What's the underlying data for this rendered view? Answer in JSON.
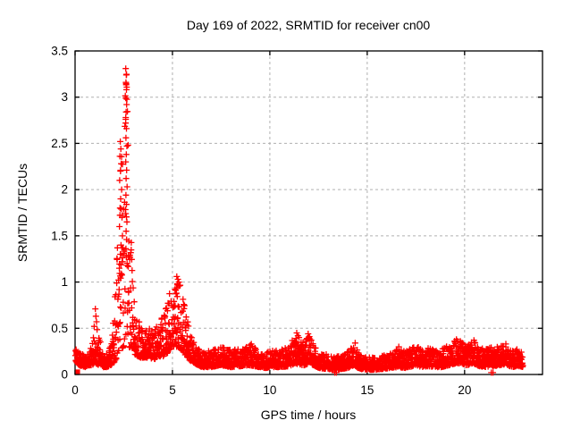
{
  "window": {
    "background_color": "#ffffff"
  },
  "chart_data": {
    "type": "scatter",
    "title": "Day 169 of 2022, SRMTID for receiver cn00",
    "xlabel": "GPS time / hours",
    "ylabel": "SRMTID / TECUs",
    "series_name": "SRMTID",
    "xlim": [
      0,
      24
    ],
    "ylim": [
      0,
      3.5
    ],
    "xticks": [
      0,
      5,
      10,
      15,
      20
    ],
    "yticks": [
      0,
      0.5,
      1,
      1.5,
      2,
      2.5,
      3,
      3.5
    ],
    "grid": true,
    "grid_color": "#b0b0b0",
    "frame_color": "#000000",
    "marker": "plus",
    "marker_color": "#ff0000",
    "legend_position": "none",
    "sampling": {
      "t_start": 0.02,
      "t_end": 23.0,
      "samples_per_hour": 120,
      "seed": 42,
      "exponent": 1.8
    },
    "envelope_lo_hi": [
      [
        0.0,
        0.15,
        0.3
      ],
      [
        0.2,
        0.1,
        0.25
      ],
      [
        0.5,
        0.08,
        0.2
      ],
      [
        0.85,
        0.1,
        0.3
      ],
      [
        1.05,
        0.12,
        0.58
      ],
      [
        1.25,
        0.1,
        0.4
      ],
      [
        1.45,
        0.08,
        0.22
      ],
      [
        1.7,
        0.08,
        0.22
      ],
      [
        1.9,
        0.1,
        0.45
      ],
      [
        2.05,
        0.15,
        1.0
      ],
      [
        2.2,
        0.2,
        1.45
      ],
      [
        2.35,
        0.25,
        2.3
      ],
      [
        2.5,
        0.3,
        2.9
      ],
      [
        2.65,
        0.35,
        3.32
      ],
      [
        2.78,
        0.3,
        2.6
      ],
      [
        2.9,
        0.25,
        1.4
      ],
      [
        3.05,
        0.22,
        0.9
      ],
      [
        3.2,
        0.2,
        0.65
      ],
      [
        3.4,
        0.18,
        0.5
      ],
      [
        3.7,
        0.18,
        0.52
      ],
      [
        4.0,
        0.16,
        0.48
      ],
      [
        4.3,
        0.18,
        0.55
      ],
      [
        4.6,
        0.2,
        0.7
      ],
      [
        4.85,
        0.25,
        0.9
      ],
      [
        5.1,
        0.3,
        1.0
      ],
      [
        5.3,
        0.3,
        1.07
      ],
      [
        5.5,
        0.25,
        0.95
      ],
      [
        5.7,
        0.2,
        0.65
      ],
      [
        5.9,
        0.15,
        0.45
      ],
      [
        6.15,
        0.12,
        0.32
      ],
      [
        6.5,
        0.08,
        0.25
      ],
      [
        7.0,
        0.08,
        0.26
      ],
      [
        7.5,
        0.1,
        0.3
      ],
      [
        8.0,
        0.08,
        0.27
      ],
      [
        8.5,
        0.09,
        0.28
      ],
      [
        9.0,
        0.1,
        0.33
      ],
      [
        9.4,
        0.08,
        0.26
      ],
      [
        9.8,
        0.07,
        0.24
      ],
      [
        10.2,
        0.08,
        0.26
      ],
      [
        10.6,
        0.08,
        0.27
      ],
      [
        11.0,
        0.09,
        0.3
      ],
      [
        11.3,
        0.12,
        0.44
      ],
      [
        11.55,
        0.1,
        0.38
      ],
      [
        11.8,
        0.1,
        0.35
      ],
      [
        12.0,
        0.12,
        0.44
      ],
      [
        12.25,
        0.1,
        0.32
      ],
      [
        12.5,
        0.07,
        0.24
      ],
      [
        12.9,
        0.06,
        0.22
      ],
      [
        13.3,
        0.05,
        0.2
      ],
      [
        13.7,
        0.06,
        0.22
      ],
      [
        14.0,
        0.07,
        0.26
      ],
      [
        14.35,
        0.1,
        0.34
      ],
      [
        14.6,
        0.06,
        0.22
      ],
      [
        15.0,
        0.05,
        0.19
      ],
      [
        15.4,
        0.05,
        0.18
      ],
      [
        15.8,
        0.06,
        0.21
      ],
      [
        16.2,
        0.07,
        0.23
      ],
      [
        16.6,
        0.08,
        0.28
      ],
      [
        17.0,
        0.07,
        0.25
      ],
      [
        17.5,
        0.1,
        0.32
      ],
      [
        17.8,
        0.08,
        0.27
      ],
      [
        18.15,
        0.09,
        0.3
      ],
      [
        18.45,
        0.08,
        0.27
      ],
      [
        18.8,
        0.08,
        0.28
      ],
      [
        19.2,
        0.1,
        0.32
      ],
      [
        19.55,
        0.12,
        0.38
      ],
      [
        19.8,
        0.12,
        0.36
      ],
      [
        20.1,
        0.1,
        0.3
      ],
      [
        20.45,
        0.12,
        0.37
      ],
      [
        20.75,
        0.09,
        0.3
      ],
      [
        21.1,
        0.08,
        0.28
      ],
      [
        21.45,
        0.09,
        0.3
      ],
      [
        21.8,
        0.1,
        0.3
      ],
      [
        22.1,
        0.11,
        0.34
      ],
      [
        22.45,
        0.08,
        0.28
      ],
      [
        22.75,
        0.09,
        0.28
      ],
      [
        23.0,
        0.08,
        0.25
      ]
    ],
    "feature_points": [
      [
        2.6,
        3.31
      ],
      [
        2.63,
        3.24
      ],
      [
        2.61,
        3.16
      ],
      [
        2.64,
        3.08
      ],
      [
        2.6,
        2.99
      ],
      [
        2.65,
        2.92
      ],
      [
        2.62,
        2.84
      ],
      [
        2.6,
        2.76
      ],
      [
        2.64,
        2.66
      ],
      [
        2.61,
        2.56
      ],
      [
        2.66,
        2.47
      ],
      [
        2.63,
        2.38
      ],
      [
        2.6,
        2.3
      ],
      [
        2.65,
        2.21
      ],
      [
        2.62,
        2.12
      ],
      [
        2.67,
        2.03
      ],
      [
        2.61,
        1.94
      ],
      [
        2.64,
        1.84
      ],
      [
        2.6,
        1.74
      ],
      [
        2.66,
        1.65
      ],
      [
        2.62,
        1.55
      ],
      [
        2.65,
        1.46
      ],
      [
        2.61,
        1.36
      ],
      [
        2.63,
        1.27
      ],
      [
        2.67,
        1.18
      ],
      [
        2.32,
        2.52
      ],
      [
        2.35,
        2.44
      ],
      [
        2.3,
        2.36
      ],
      [
        2.37,
        2.28
      ],
      [
        2.33,
        2.2
      ],
      [
        2.29,
        2.1
      ],
      [
        2.39,
        2.0
      ],
      [
        2.34,
        1.9
      ],
      [
        2.31,
        1.8
      ],
      [
        2.41,
        1.7
      ],
      [
        2.28,
        1.6
      ],
      [
        2.43,
        1.5
      ],
      [
        2.36,
        1.4
      ],
      [
        2.32,
        1.3
      ],
      [
        2.44,
        1.22
      ],
      [
        2.27,
        1.15
      ],
      [
        5.22,
        1.06
      ],
      [
        5.28,
        1.03
      ],
      [
        5.33,
        1.0
      ],
      [
        5.25,
        0.98
      ],
      [
        5.36,
        0.96
      ],
      [
        1.04,
        0.71
      ],
      [
        1.07,
        0.63
      ],
      [
        1.1,
        0.57
      ],
      [
        0.98,
        0.52
      ],
      [
        0.05,
        0.27
      ],
      [
        0.08,
        0.24
      ],
      [
        9.05,
        0.33
      ],
      [
        11.38,
        0.45
      ],
      [
        11.44,
        0.42
      ],
      [
        11.5,
        0.4
      ],
      [
        11.97,
        0.44
      ],
      [
        12.03,
        0.41
      ],
      [
        14.38,
        0.34
      ],
      [
        16.62,
        0.3
      ],
      [
        19.58,
        0.38
      ],
      [
        19.64,
        0.36
      ],
      [
        20.48,
        0.37
      ],
      [
        20.54,
        0.34
      ],
      [
        22.12,
        0.33
      ]
    ],
    "zero_points": [
      [
        13.33,
        0.02
      ],
      [
        13.42,
        0.02
      ],
      [
        21.37,
        0.02
      ],
      [
        21.46,
        0.02
      ]
    ],
    "origin_marker": {
      "x": 0.14,
      "y": 0.03,
      "shape": "filled-square"
    }
  }
}
